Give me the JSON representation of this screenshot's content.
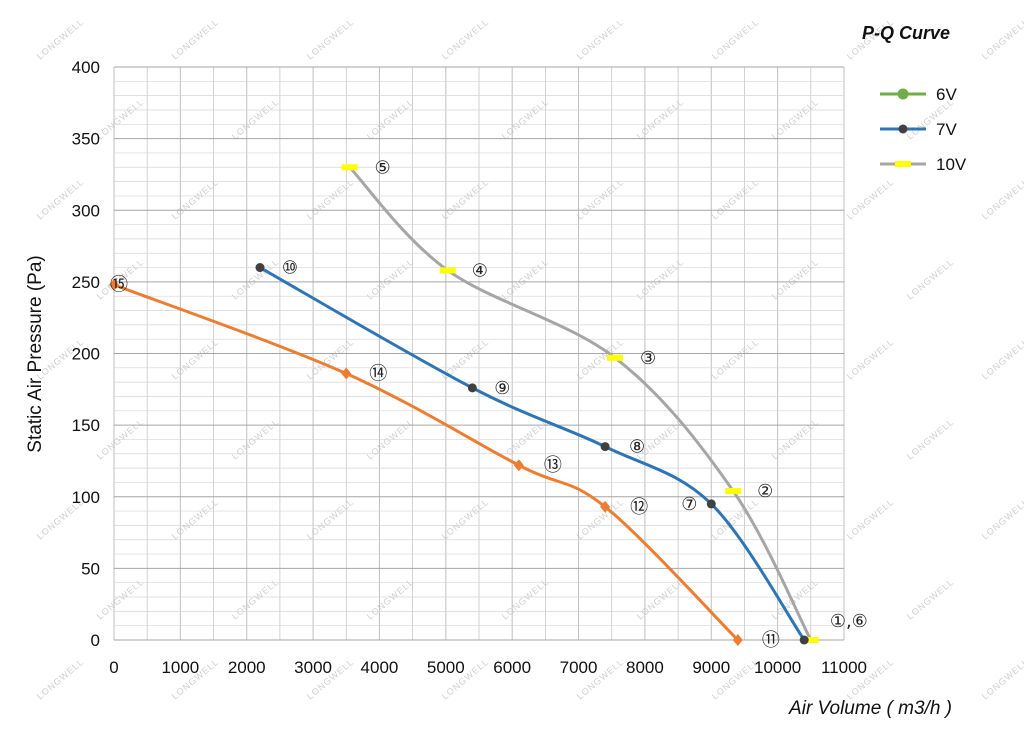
{
  "chart_data": {
    "type": "line",
    "title": "P-Q Curve",
    "xlabel": "Air Volume ( m3/h )",
    "ylabel": "Static Air Pressure  (Pa)",
    "xlim": [
      0,
      11000
    ],
    "ylim": [
      0,
      400
    ],
    "x_ticks": [
      0,
      1000,
      2000,
      3000,
      4000,
      5000,
      6000,
      7000,
      8000,
      9000,
      10000,
      11000
    ],
    "y_ticks": [
      0,
      50,
      100,
      150,
      200,
      250,
      300,
      350,
      400
    ],
    "grid": true,
    "legend_position": "top-right",
    "legend": [
      {
        "label": "6V",
        "color": "#70ad47",
        "marker": "circle"
      },
      {
        "label": "7V",
        "color": "#2e75b6",
        "marker": "circle"
      },
      {
        "label": "10V",
        "color": "#a6a6a6",
        "marker": "bar",
        "marker_color": "#ffff00"
      }
    ],
    "series": [
      {
        "name": "10V",
        "color": "#a6a6a6",
        "marker": "bar",
        "marker_color": "#ffff00",
        "points": [
          {
            "x": 3550,
            "y": 330,
            "label": "⑤"
          },
          {
            "x": 5030,
            "y": 258,
            "label": "④"
          },
          {
            "x": 7550,
            "y": 197,
            "label": "③"
          },
          {
            "x": 9330,
            "y": 104,
            "label": "②"
          },
          {
            "x": 10500,
            "y": 0,
            "label": "①,⑥"
          }
        ]
      },
      {
        "name": "7V",
        "color": "#2e75b6",
        "marker": "circle",
        "points": [
          {
            "x": 2200,
            "y": 260,
            "label": "⑩"
          },
          {
            "x": 5400,
            "y": 176,
            "label": "⑨"
          },
          {
            "x": 7400,
            "y": 135,
            "label": "⑧"
          },
          {
            "x": 9000,
            "y": 95,
            "label": "⑦"
          },
          {
            "x": 10400,
            "y": 0,
            "label": ""
          }
        ]
      },
      {
        "name": "",
        "color": "#ed7d31",
        "marker": "diamond",
        "points": [
          {
            "x": 0,
            "y": 248,
            "label": "⑮"
          },
          {
            "x": 3500,
            "y": 186,
            "label": "⑭"
          },
          {
            "x": 6100,
            "y": 122,
            "label": "⑬"
          },
          {
            "x": 7400,
            "y": 93,
            "label": "⑫"
          },
          {
            "x": 9400,
            "y": 0,
            "label": "⑪"
          }
        ]
      }
    ]
  },
  "watermark": "LONGWELL"
}
